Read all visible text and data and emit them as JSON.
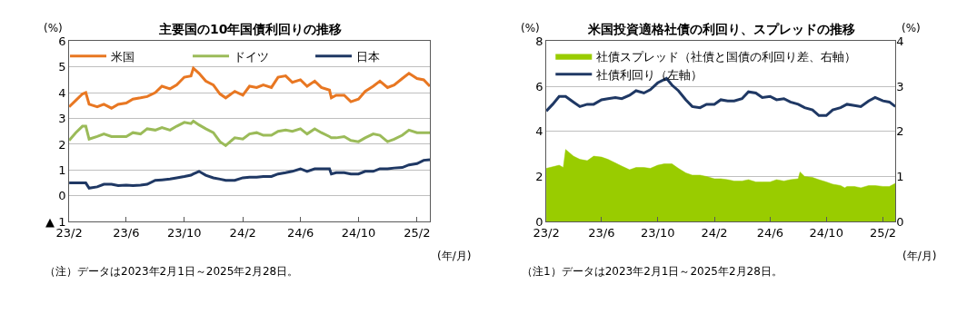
{
  "chart_data": [
    {
      "type": "line",
      "title": "主要国の10年国債利回りの推移",
      "ylabel": "(%)",
      "xlabel": "(年/月)",
      "xlim": [
        "2023-02-01",
        "2025-02-28"
      ],
      "xticks": [
        {
          "value": "2023-02-01",
          "label": "23/2"
        },
        {
          "value": "2023-06-01",
          "label": "23/6"
        },
        {
          "value": "2023-10-01",
          "label": "23/10"
        },
        {
          "value": "2024-02-01",
          "label": "24/2"
        },
        {
          "value": "2024-06-01",
          "label": "24/6"
        },
        {
          "value": "2024-10-01",
          "label": "24/10"
        },
        {
          "value": "2025-02-01",
          "label": "25/2"
        }
      ],
      "ylim": [
        -1,
        6
      ],
      "yticks": [
        {
          "value": -1,
          "label": "▲ 1"
        },
        0,
        1,
        2,
        3,
        4,
        5,
        6
      ],
      "grid": "y",
      "legend": "top",
      "marker": "none",
      "line_style": "solid",
      "x": [
        "2023-02-01",
        "2023-02-15",
        "2023-03-01",
        "2023-03-08",
        "2023-03-15",
        "2023-04-01",
        "2023-04-15",
        "2023-05-01",
        "2023-05-15",
        "2023-06-01",
        "2023-06-15",
        "2023-07-01",
        "2023-07-15",
        "2023-08-01",
        "2023-08-15",
        "2023-09-01",
        "2023-09-15",
        "2023-10-01",
        "2023-10-15",
        "2023-10-20",
        "2023-11-01",
        "2023-11-15",
        "2023-12-01",
        "2023-12-15",
        "2023-12-27",
        "2024-01-15",
        "2024-02-01",
        "2024-02-15",
        "2024-03-01",
        "2024-03-15",
        "2024-04-01",
        "2024-04-15",
        "2024-05-01",
        "2024-05-15",
        "2024-06-01",
        "2024-06-15",
        "2024-07-01",
        "2024-07-15",
        "2024-08-01",
        "2024-08-05",
        "2024-08-15",
        "2024-09-01",
        "2024-09-15",
        "2024-10-01",
        "2024-10-15",
        "2024-11-01",
        "2024-11-15",
        "2024-12-01",
        "2024-12-15",
        "2025-01-01",
        "2025-01-15",
        "2025-02-01",
        "2025-02-15",
        "2025-02-28"
      ],
      "annotations": [
        "（注）データは2023年2月1日～2025年2月28日。"
      ],
      "series": [
        {
          "name": "米国",
          "color": "#e87722",
          "values": [
            3.45,
            3.7,
            3.95,
            4.0,
            3.55,
            3.45,
            3.55,
            3.4,
            3.55,
            3.6,
            3.75,
            3.8,
            3.85,
            4.0,
            4.25,
            4.15,
            4.3,
            4.6,
            4.65,
            4.95,
            4.75,
            4.45,
            4.3,
            3.95,
            3.8,
            4.05,
            3.9,
            4.25,
            4.2,
            4.3,
            4.2,
            4.6,
            4.65,
            4.4,
            4.5,
            4.25,
            4.45,
            4.2,
            4.1,
            3.8,
            3.9,
            3.9,
            3.65,
            3.75,
            4.05,
            4.25,
            4.45,
            4.2,
            4.3,
            4.55,
            4.75,
            4.55,
            4.5,
            4.25
          ]
        },
        {
          "name": "ドイツ",
          "color": "#9bbb59",
          "values": [
            2.15,
            2.45,
            2.7,
            2.7,
            2.2,
            2.3,
            2.4,
            2.3,
            2.3,
            2.3,
            2.45,
            2.4,
            2.6,
            2.55,
            2.65,
            2.55,
            2.7,
            2.85,
            2.8,
            2.9,
            2.75,
            2.6,
            2.45,
            2.1,
            1.95,
            2.25,
            2.2,
            2.4,
            2.45,
            2.35,
            2.35,
            2.5,
            2.55,
            2.5,
            2.6,
            2.4,
            2.6,
            2.45,
            2.3,
            2.25,
            2.25,
            2.3,
            2.15,
            2.1,
            2.25,
            2.4,
            2.35,
            2.1,
            2.2,
            2.35,
            2.55,
            2.45,
            2.45,
            2.45
          ]
        },
        {
          "name": "日本",
          "color": "#1f3864",
          "values": [
            0.5,
            0.5,
            0.5,
            0.5,
            0.3,
            0.35,
            0.45,
            0.45,
            0.4,
            0.42,
            0.4,
            0.42,
            0.45,
            0.6,
            0.62,
            0.65,
            0.7,
            0.75,
            0.8,
            0.85,
            0.95,
            0.8,
            0.7,
            0.65,
            0.6,
            0.6,
            0.7,
            0.72,
            0.72,
            0.75,
            0.75,
            0.85,
            0.9,
            0.95,
            1.05,
            0.95,
            1.05,
            1.05,
            1.05,
            0.85,
            0.9,
            0.9,
            0.85,
            0.85,
            0.95,
            0.95,
            1.05,
            1.05,
            1.08,
            1.1,
            1.2,
            1.25,
            1.38,
            1.4
          ]
        }
      ]
    },
    {
      "type": "line",
      "title": "米国投資適格社債の利回り、スプレッドの推移",
      "ylabel": "(%)",
      "y2label": "(%)",
      "xlabel": "(年/月)",
      "xlim": [
        "2023-02-01",
        "2025-02-28"
      ],
      "xticks": [
        {
          "value": "2023-02-01",
          "label": "23/2"
        },
        {
          "value": "2023-06-01",
          "label": "23/6"
        },
        {
          "value": "2023-10-01",
          "label": "23/10"
        },
        {
          "value": "2024-02-01",
          "label": "24/2"
        },
        {
          "value": "2024-06-01",
          "label": "24/6"
        },
        {
          "value": "2024-10-01",
          "label": "24/10"
        },
        {
          "value": "2025-02-01",
          "label": "25/2"
        }
      ],
      "ylim": [
        0,
        8
      ],
      "yticks": [
        0,
        2,
        4,
        6,
        8
      ],
      "y2lim": [
        0,
        4
      ],
      "y2ticks": [
        0,
        1,
        2,
        3,
        4
      ],
      "grid": "y",
      "legend": "top left",
      "marker": "none",
      "line_style": "solid",
      "annotations": [
        "（注1）データは2023年2月1日～2025年2月28日。"
      ],
      "series": [
        {
          "name": "社債スプレッド（社債と国債の利回り差、右軸）",
          "type": "area",
          "axis": "y2",
          "color": "#99cc00",
          "x": [
            "2023-02-01",
            "2023-03-01",
            "2023-03-10",
            "2023-03-15",
            "2023-04-01",
            "2023-04-15",
            "2023-05-01",
            "2023-05-15",
            "2023-06-01",
            "2023-06-15",
            "2023-07-01",
            "2023-07-15",
            "2023-08-01",
            "2023-08-15",
            "2023-09-01",
            "2023-09-15",
            "2023-10-01",
            "2023-10-15",
            "2023-11-01",
            "2023-11-15",
            "2023-12-01",
            "2023-12-15",
            "2024-01-01",
            "2024-01-15",
            "2024-02-01",
            "2024-02-15",
            "2024-03-01",
            "2024-03-15",
            "2024-04-01",
            "2024-04-15",
            "2024-05-01",
            "2024-05-15",
            "2024-06-01",
            "2024-06-15",
            "2024-07-01",
            "2024-07-15",
            "2024-08-01",
            "2024-08-05",
            "2024-08-15",
            "2024-09-01",
            "2024-09-15",
            "2024-10-01",
            "2024-10-15",
            "2024-11-01",
            "2024-11-10",
            "2024-11-15",
            "2024-12-01",
            "2024-12-15",
            "2025-01-01",
            "2025-01-15",
            "2025-02-01",
            "2025-02-15",
            "2025-02-28"
          ],
          "values": [
            1.18,
            1.25,
            1.2,
            1.6,
            1.45,
            1.38,
            1.35,
            1.45,
            1.43,
            1.38,
            1.3,
            1.23,
            1.15,
            1.2,
            1.2,
            1.18,
            1.25,
            1.28,
            1.28,
            1.18,
            1.08,
            1.03,
            1.03,
            1.0,
            0.95,
            0.95,
            0.93,
            0.9,
            0.9,
            0.93,
            0.88,
            0.88,
            0.88,
            0.93,
            0.9,
            0.93,
            0.95,
            1.1,
            1.0,
            0.98,
            0.93,
            0.88,
            0.83,
            0.8,
            0.75,
            0.78,
            0.78,
            0.75,
            0.8,
            0.8,
            0.78,
            0.78,
            0.85
          ]
        },
        {
          "name": "社債利回り（左軸）",
          "type": "line",
          "color": "#1f3864",
          "x": [
            "2023-02-01",
            "2023-02-15",
            "2023-03-01",
            "2023-03-15",
            "2023-04-01",
            "2023-04-15",
            "2023-05-01",
            "2023-05-15",
            "2023-06-01",
            "2023-06-15",
            "2023-07-01",
            "2023-07-15",
            "2023-08-01",
            "2023-08-15",
            "2023-09-01",
            "2023-09-15",
            "2023-10-01",
            "2023-10-20",
            "2023-11-01",
            "2023-11-15",
            "2023-12-01",
            "2023-12-15",
            "2024-01-01",
            "2024-01-15",
            "2024-02-01",
            "2024-02-15",
            "2024-03-01",
            "2024-03-15",
            "2024-04-01",
            "2024-04-15",
            "2024-05-01",
            "2024-05-15",
            "2024-06-01",
            "2024-06-15",
            "2024-07-01",
            "2024-07-15",
            "2024-08-01",
            "2024-08-15",
            "2024-09-01",
            "2024-09-15",
            "2024-10-01",
            "2024-10-15",
            "2024-11-01",
            "2024-11-15",
            "2024-12-01",
            "2024-12-15",
            "2025-01-01",
            "2025-01-15",
            "2025-02-01",
            "2025-02-15",
            "2025-02-28"
          ],
          "values": [
            4.9,
            5.2,
            5.55,
            5.55,
            5.3,
            5.1,
            5.2,
            5.2,
            5.4,
            5.45,
            5.5,
            5.45,
            5.6,
            5.8,
            5.7,
            5.85,
            6.15,
            6.35,
            6.05,
            5.8,
            5.4,
            5.1,
            5.05,
            5.2,
            5.2,
            5.4,
            5.35,
            5.35,
            5.45,
            5.75,
            5.7,
            5.5,
            5.55,
            5.4,
            5.45,
            5.3,
            5.2,
            5.05,
            4.95,
            4.7,
            4.7,
            4.95,
            5.05,
            5.2,
            5.15,
            5.1,
            5.35,
            5.5,
            5.35,
            5.3,
            5.1
          ]
        }
      ]
    }
  ]
}
